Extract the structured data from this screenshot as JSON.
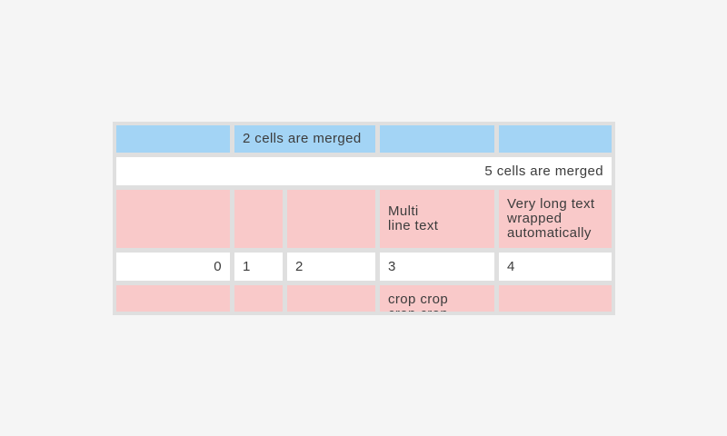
{
  "page": {
    "background_color": "#f5f5f5"
  },
  "table": {
    "colors": {
      "widget_surface": "#dfdfdf",
      "header_cell": "#a3d4f5",
      "highlight_cell": "#f9c9c9",
      "default_cell": "#ffffff",
      "text": "#3c3c3c"
    },
    "row1": {
      "merged_label": "2 cells are merged"
    },
    "row2": {
      "merged_label": "5 cells are merged"
    },
    "row3": {
      "col4": "Multi\nline text",
      "col5": "Very long text wrapped automatically"
    },
    "row4": {
      "col1": "0",
      "col2": "1",
      "col3": "2",
      "col4": "3",
      "col5": "4"
    },
    "row5": {
      "col4": "crop crop\ncrop crop"
    }
  }
}
